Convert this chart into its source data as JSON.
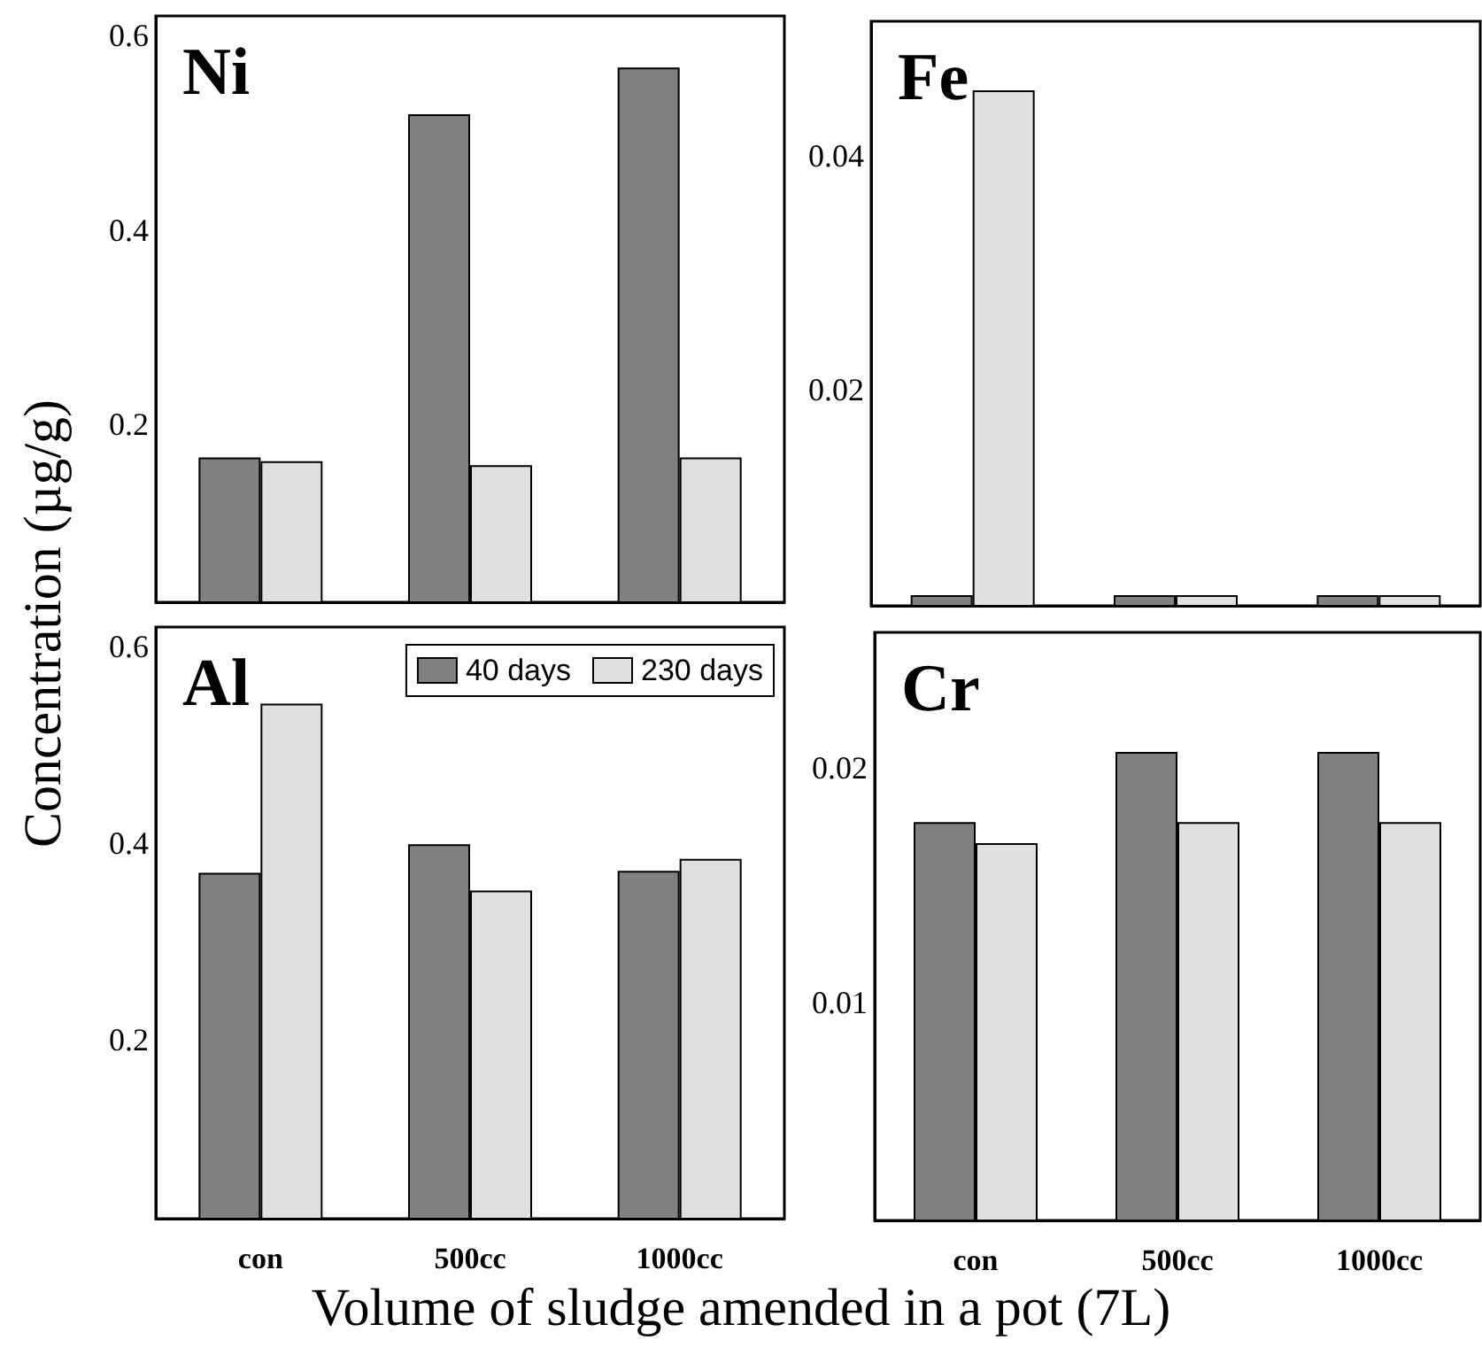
{
  "chart_data": [
    {
      "type": "bar",
      "title": "Ni",
      "categories": [
        null,
        null,
        null
      ],
      "tick_labels": "y",
      "ylim": [
        0.017,
        0.62
      ],
      "yticks": [
        0.2,
        0.4,
        0.6
      ],
      "series": [
        {
          "color": "#808080",
          "values": [
            0.166,
            0.519,
            0.567
          ]
        },
        {
          "color": "#e0e0e0",
          "values": [
            0.162,
            0.158,
            0.166
          ]
        }
      ]
    },
    {
      "type": "bar",
      "title": "Fe",
      "categories": [
        null,
        null,
        null
      ],
      "tick_labels": "y",
      "ylim": [
        0.0015,
        0.0515
      ],
      "yticks": [
        0.02,
        0.04
      ],
      "series": [
        {
          "color": "#808080",
          "values": [
            0.0024,
            0.0024,
            0.0024
          ]
        },
        {
          "color": "#e0e0e0",
          "values": [
            0.0456,
            0.0024,
            0.0024
          ]
        }
      ]
    },
    {
      "type": "bar",
      "title": "Al",
      "xlabel": "Volume of sludge amended in a pot (7L)",
      "ylabel": "Concentration (µg/g)",
      "categories": [
        "con",
        "500cc",
        "1000cc"
      ],
      "ylim": [
        0.018,
        0.62
      ],
      "yticks": [
        0.2,
        0.4,
        0.6
      ],
      "legend": "top right",
      "series": [
        {
          "name": "40 days",
          "color": "#808080",
          "values": [
            0.37,
            0.399,
            0.372
          ]
        },
        {
          "name": "230 days",
          "color": "#e0e0e0",
          "values": [
            0.542,
            0.352,
            0.384
          ]
        }
      ]
    },
    {
      "type": "bar",
      "title": "Cr",
      "categories": [
        "con",
        "500cc",
        "1000cc"
      ],
      "ylim": [
        0.0007,
        0.0258
      ],
      "yticks": [
        0.01,
        0.02
      ],
      "series": [
        {
          "color": "#808080",
          "values": [
            0.0177,
            0.0207,
            0.0207
          ]
        },
        {
          "color": "#e0e0e0",
          "values": [
            0.0168,
            0.0177,
            0.0177
          ]
        }
      ]
    }
  ]
}
